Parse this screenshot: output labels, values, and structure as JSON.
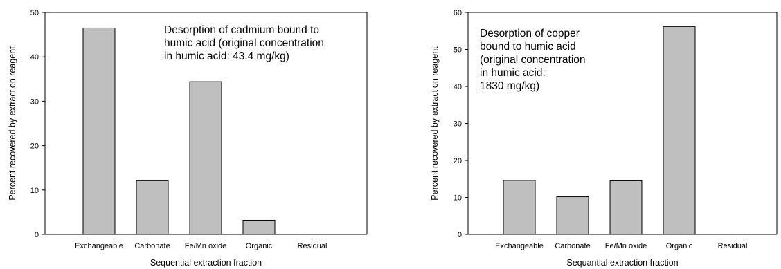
{
  "chart_data": [
    {
      "type": "bar",
      "categories": [
        "Exchangeable",
        "Carbonate",
        "Fe/Mn oxide",
        "Organic",
        "Residual"
      ],
      "values": [
        46.5,
        12.1,
        34.4,
        3.2,
        0
      ],
      "xlabel": "Sequential extraction fraction",
      "ylabel": "Percent recovered by extraction reagent",
      "ylim": [
        0,
        50
      ],
      "yticks": [
        0,
        10,
        20,
        30,
        40,
        50
      ],
      "annotation": [
        "Desorption of cadmium bound to",
        "humic acid (original concentration",
        "in humic acid: 43.4 mg/kg)"
      ],
      "bar_color": "#bfbfbf",
      "grid": false
    },
    {
      "type": "bar",
      "categories": [
        "Exchangeable",
        "Carbonate",
        "Fe/Mn oxide",
        "Organic",
        "Residual"
      ],
      "values": [
        14.6,
        10.2,
        14.5,
        56.2,
        0
      ],
      "xlabel": "Sequantial extraction fraction",
      "ylabel": "Percent recovered by extraction reagent",
      "ylim": [
        0,
        60
      ],
      "yticks": [
        0,
        10,
        20,
        30,
        40,
        50,
        60
      ],
      "annotation": [
        "Desorption of copper",
        "bound to humic acid",
        "(original concentration",
        "in humic acid:",
        "1830 mg/kg)"
      ],
      "bar_color": "#bfbfbf",
      "grid": false
    }
  ]
}
